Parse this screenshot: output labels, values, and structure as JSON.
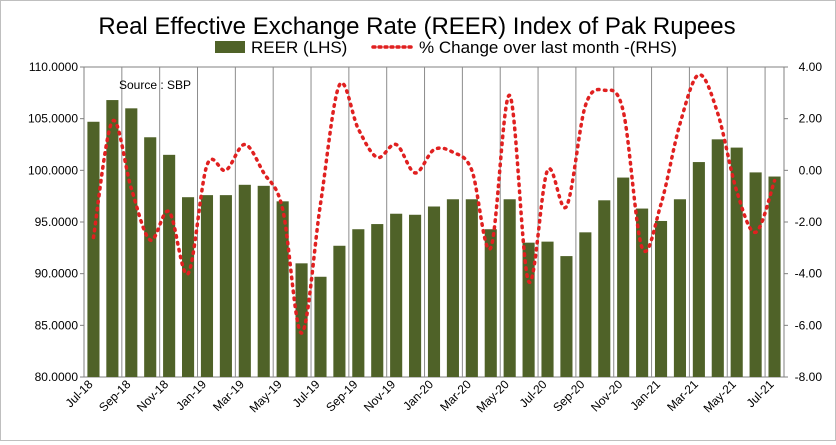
{
  "chart_data": {
    "type": "bar+line",
    "title": "Real Effective Exchange Rate (REER) Index of Pak Rupees",
    "annotation": "Source : SBP",
    "categories": [
      "Jul-18",
      "Aug-18",
      "Sep-18",
      "Oct-18",
      "Nov-18",
      "Dec-18",
      "Jan-19",
      "Feb-19",
      "Mar-19",
      "Apr-19",
      "May-19",
      "Jun-19",
      "Jul-19",
      "Aug-19",
      "Sep-19",
      "Oct-19",
      "Nov-19",
      "Dec-19",
      "Jan-20",
      "Feb-20",
      "Mar-20",
      "Apr-20",
      "May-20",
      "Jun-20",
      "Jul-20",
      "Aug-20",
      "Sep-20",
      "Oct-20",
      "Nov-20",
      "Dec-20",
      "Jan-21",
      "Feb-21",
      "Mar-21",
      "Apr-21",
      "May-21",
      "Jun-21",
      "Jul-21"
    ],
    "x_tick_labels": [
      "Jul-18",
      "Sep-18",
      "Nov-18",
      "Jan-19",
      "Mar-19",
      "May-19",
      "Jul-19",
      "Sep-19",
      "Nov-19",
      "Jan-20",
      "Mar-20",
      "May-20",
      "Jul-20",
      "Sep-20",
      "Nov-20",
      "Jan-21",
      "Mar-21",
      "May-21",
      "Jul-21"
    ],
    "left_axis": {
      "ylim": [
        80,
        110
      ],
      "ticks": [
        "80.0000",
        "85.0000",
        "90.0000",
        "95.0000",
        "100.0000",
        "105.0000",
        "110.0000"
      ]
    },
    "right_axis": {
      "ylim": [
        -8,
        4
      ],
      "ticks": [
        "-8.00",
        "-6.00",
        "-4.00",
        "-2.00",
        "0.00",
        "2.00",
        "4.00"
      ]
    },
    "series": [
      {
        "name": "REER (LHS)",
        "kind": "bar",
        "axis": "left",
        "color": "#4f6228",
        "values": [
          104.7,
          106.8,
          106.0,
          103.2,
          101.5,
          97.4,
          97.6,
          97.6,
          98.6,
          98.5,
          97.0,
          91.0,
          89.7,
          92.7,
          94.3,
          94.8,
          95.8,
          95.7,
          96.5,
          97.2,
          97.2,
          94.3,
          97.2,
          93.0,
          93.1,
          91.7,
          94.0,
          97.1,
          99.3,
          96.3,
          95.1,
          97.2,
          100.8,
          103.0,
          102.2,
          99.8,
          99.4
        ]
      },
      {
        "name": "% Change over last month -(RHS)",
        "kind": "line",
        "axis": "right",
        "style": "dotted",
        "color": "#e02020",
        "values": [
          -2.6,
          1.9,
          -0.7,
          -2.7,
          -1.6,
          -4.0,
          0.2,
          0.0,
          1.0,
          -0.1,
          -1.5,
          -6.3,
          -1.3,
          3.3,
          1.6,
          0.5,
          1.0,
          -0.1,
          0.8,
          0.7,
          0.0,
          -3.0,
          2.9,
          -4.3,
          0.0,
          -1.4,
          2.5,
          3.1,
          2.3,
          -3.0,
          -1.3,
          1.8,
          3.7,
          2.2,
          -0.8,
          -2.4,
          -0.4
        ]
      }
    ],
    "grid": "vertical",
    "legend_position": "top"
  }
}
